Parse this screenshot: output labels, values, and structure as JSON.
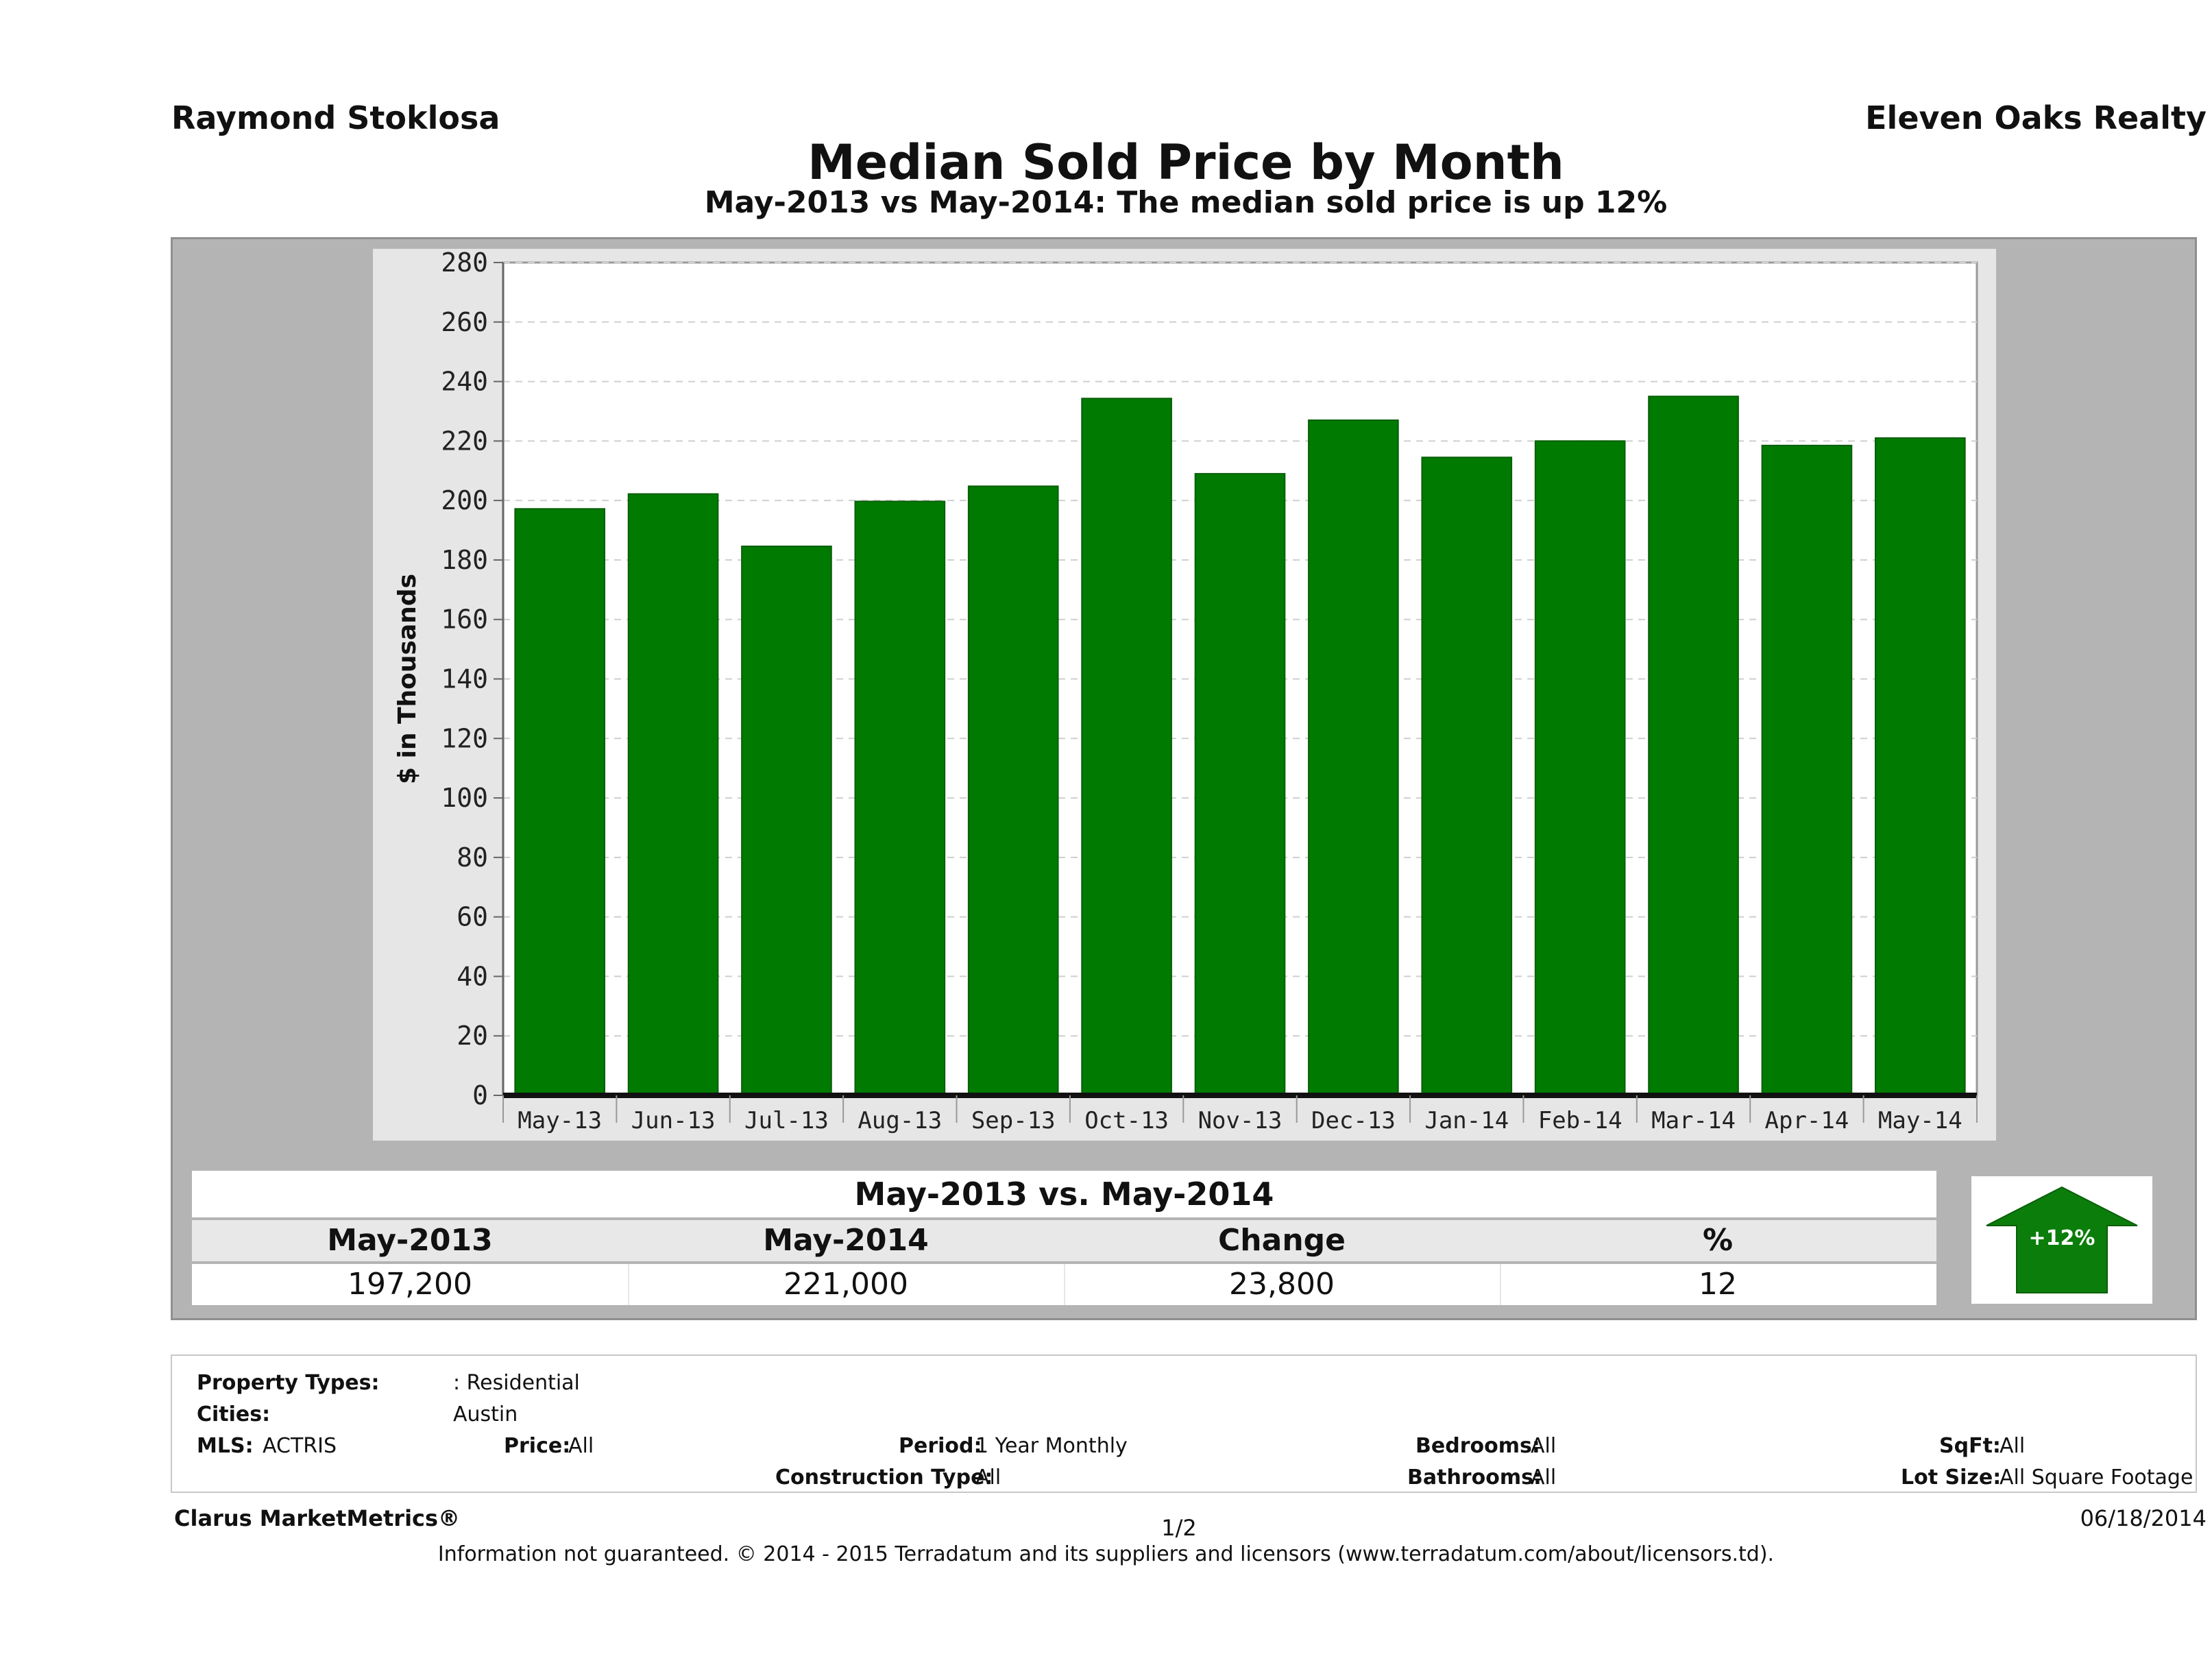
{
  "header": {
    "agent_name": "Raymond Stoklosa",
    "brokerage": "Eleven Oaks Realty",
    "title": "Median Sold Price by Month",
    "subtitle": "May-2013 vs May-2014: The median sold price is up 12%"
  },
  "chart_data": {
    "type": "bar",
    "categories": [
      "May-13",
      "Jun-13",
      "Jul-13",
      "Aug-13",
      "Sep-13",
      "Oct-13",
      "Nov-13",
      "Dec-13",
      "Jan-14",
      "Feb-14",
      "Mar-14",
      "Apr-14",
      "May-14"
    ],
    "values": [
      197.2,
      202.2,
      184.6,
      199.7,
      204.8,
      234.3,
      209.0,
      227.0,
      214.5,
      220.0,
      235.0,
      218.5,
      221.0
    ],
    "ylabel": "$ in Thousands",
    "xlabel": "",
    "ylim": [
      0,
      280
    ],
    "yticks": [
      0,
      20,
      40,
      60,
      80,
      100,
      120,
      140,
      160,
      180,
      200,
      220,
      240,
      260,
      280
    ],
    "grid": true,
    "bar_color": "#007a00"
  },
  "comparison": {
    "title": "May-2013 vs. May-2014",
    "headers": [
      "May-2013",
      "May-2014",
      "Change",
      "%"
    ],
    "values": [
      "197,200",
      "221,000",
      "23,800",
      "12"
    ],
    "badge": "+12%",
    "badge_color": "#0b7d0b"
  },
  "filters": {
    "property_types_label": "Property Types:",
    "property_types_value": ": Residential",
    "cities_label": "Cities:",
    "cities_value": "Austin",
    "mls_label": "MLS:",
    "mls_value": "ACTRIS",
    "price_label": "Price:",
    "price_value": "All",
    "period_label": "Period:",
    "period_value": "1 Year Monthly",
    "construction_label": "Construction Type:",
    "construction_value": "All",
    "bedrooms_label": "Bedrooms:",
    "bedrooms_value": "All",
    "bathrooms_label": "Bathrooms:",
    "bathrooms_value": "All",
    "sqft_label": "SqFt:",
    "sqft_value": "All",
    "lotsize_label": "Lot Size:",
    "lotsize_value": "All Square Footage"
  },
  "footer": {
    "brand": "Clarus MarketMetrics®",
    "page": "1/2",
    "date": "06/18/2014",
    "disclaimer": "Information not guaranteed. © 2014 - 2015 Terradatum and its suppliers and licensors (www.terradatum.com/about/licensors.td)."
  }
}
